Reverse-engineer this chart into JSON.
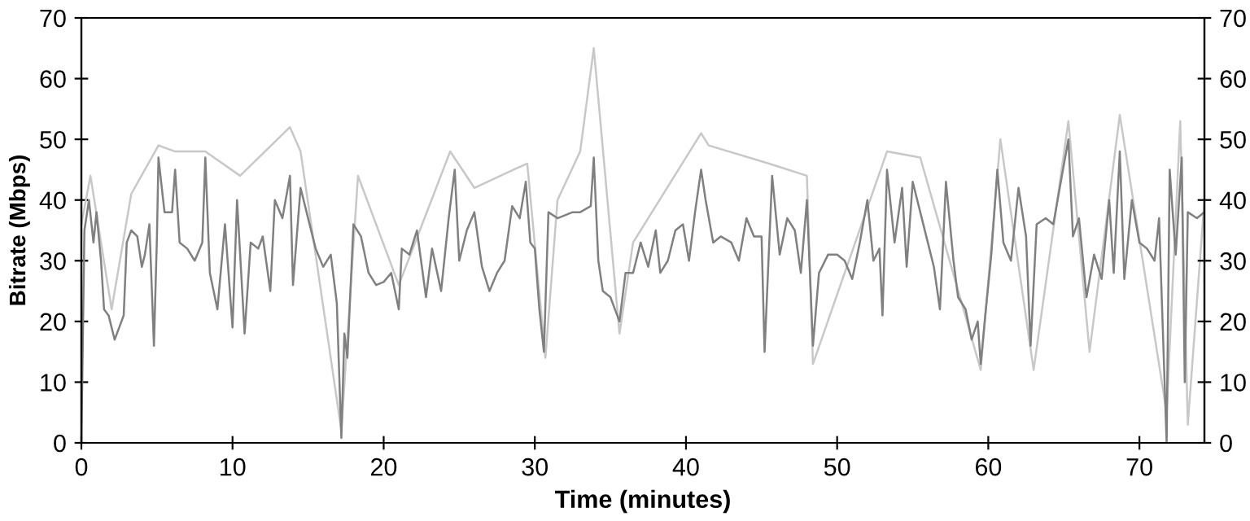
{
  "chart_data": {
    "type": "line",
    "xlabel": "Time (minutes)",
    "ylabel": "Bitrate (Mbps)",
    "xlim": [
      0,
      74.3
    ],
    "xticks": [
      0,
      10,
      20,
      30,
      40,
      50,
      60,
      70
    ],
    "ylim": [
      0,
      70
    ],
    "yticks": [
      0,
      10,
      20,
      30,
      40,
      50,
      60,
      70
    ],
    "y2lim": [
      0,
      70
    ],
    "y2ticks": [
      0,
      10,
      20,
      30,
      40,
      50,
      60,
      70
    ],
    "grid": false,
    "legend": false,
    "marker": "none",
    "line_style": "solid",
    "series": [
      {
        "color": "#c8c8c8",
        "x": [
          0,
          0.6,
          2,
          3.3,
          5.1,
          6.2,
          8.2,
          10.5,
          13.8,
          14.5,
          17.2,
          18.3,
          21,
          24.4,
          26,
          28.6,
          29.5,
          30.7,
          31.5,
          33,
          33.9,
          35.6,
          36.5,
          41,
          41.5,
          45.5,
          48,
          48.4,
          53.3,
          55.5,
          59.5,
          60.8,
          63,
          65.3,
          66.7,
          68.7,
          71.8,
          72.7,
          73.2,
          74.3
        ],
        "values": [
          36,
          44,
          22,
          41,
          49,
          48,
          48,
          44,
          52,
          48,
          2,
          44,
          26,
          48,
          42,
          45,
          46,
          14,
          40,
          48,
          65,
          18,
          33,
          51,
          49,
          46,
          44,
          13,
          48,
          47,
          12,
          50,
          12,
          53,
          15,
          54,
          5,
          53,
          3,
          40
        ]
      },
      {
        "color": "#808080",
        "x": [
          0,
          0.2,
          0.5,
          0.8,
          1.0,
          1.3,
          1.5,
          1.8,
          2.2,
          2.5,
          2.8,
          3.0,
          3.3,
          3.7,
          4.0,
          4.2,
          4.5,
          4.8,
          5.0,
          5.1,
          5.5,
          6.0,
          6.2,
          6.5,
          7.0,
          7.5,
          8.0,
          8.2,
          8.5,
          9.0,
          9.5,
          10.0,
          10.3,
          10.8,
          11.2,
          11.7,
          12.0,
          12.5,
          12.8,
          13.3,
          13.8,
          14.0,
          14.5,
          15.0,
          15.5,
          16.0,
          16.5,
          16.9,
          17.2,
          17.4,
          17.6,
          18.0,
          18.5,
          19.0,
          19.5,
          20.0,
          20.5,
          21.0,
          21.2,
          21.7,
          22.2,
          22.8,
          23.2,
          23.8,
          24.3,
          24.7,
          25.0,
          25.5,
          26.0,
          26.5,
          27.0,
          27.5,
          28.0,
          28.5,
          29.0,
          29.4,
          29.7,
          30.0,
          30.3,
          30.6,
          30.9,
          31.5,
          32.5,
          33.0,
          33.7,
          33.9,
          34.2,
          34.5,
          35.0,
          35.6,
          36.0,
          36.5,
          37.0,
          37.5,
          38.0,
          38.3,
          38.8,
          39.3,
          39.8,
          40.2,
          40.6,
          41.0,
          41.3,
          41.8,
          42.3,
          43.0,
          43.5,
          44.0,
          44.5,
          45.0,
          45.2,
          45.7,
          46.2,
          46.7,
          47.2,
          47.6,
          48.0,
          48.4,
          48.8,
          49.4,
          50.0,
          50.5,
          51.0,
          51.5,
          52.0,
          52.4,
          52.8,
          53.0,
          53.3,
          53.8,
          54.3,
          54.6,
          55.0,
          55.5,
          56.0,
          56.4,
          56.8,
          57.2,
          57.7,
          58.0,
          58.5,
          58.9,
          59.3,
          59.5,
          59.8,
          60.2,
          60.6,
          61.0,
          61.5,
          62.0,
          62.5,
          62.8,
          63.2,
          63.8,
          64.3,
          64.8,
          65.3,
          65.6,
          66.0,
          66.5,
          67.0,
          67.5,
          68.0,
          68.3,
          68.7,
          69.0,
          69.5,
          70.0,
          70.5,
          71.0,
          71.3,
          71.8,
          72.0,
          72.4,
          72.8,
          73.0,
          73.2,
          73.8,
          74.3
        ],
        "values": [
          0,
          35,
          40,
          33,
          38,
          30,
          22,
          21,
          17,
          19,
          21,
          33,
          35,
          34,
          29,
          31,
          36,
          16,
          34,
          47,
          38,
          38,
          45,
          33,
          32,
          30,
          33,
          47,
          28,
          22,
          36,
          19,
          40,
          18,
          33,
          32,
          34,
          25,
          40,
          37,
          44,
          26,
          42,
          37,
          32,
          29,
          31,
          23,
          0.8,
          18,
          14,
          36,
          34,
          28,
          26,
          26.5,
          28,
          22,
          32,
          31,
          35,
          24,
          32,
          25,
          37,
          45,
          30,
          35,
          38,
          29,
          25,
          28,
          30,
          39,
          37,
          43,
          33,
          32,
          22,
          15,
          38,
          37,
          38,
          38,
          39,
          47,
          30,
          25,
          24,
          20,
          28,
          28,
          33,
          29,
          35,
          28,
          30,
          35,
          36,
          30,
          38,
          45,
          40,
          33,
          34,
          33,
          30,
          37,
          34,
          34,
          15,
          44,
          31,
          37,
          35,
          28,
          40,
          16,
          28,
          31,
          31,
          30,
          27,
          33,
          40,
          30,
          32,
          21,
          45,
          33,
          42,
          29,
          43,
          38,
          33,
          29,
          22,
          43,
          30,
          24,
          22,
          17,
          20,
          13,
          21,
          31,
          45,
          33,
          30,
          42,
          34,
          16,
          36,
          37,
          36,
          43,
          50,
          34,
          37,
          24,
          31,
          27,
          40,
          28,
          48,
          27,
          40,
          33,
          32,
          30,
          37,
          0,
          45,
          31,
          47,
          10,
          38,
          37,
          38
        ]
      }
    ]
  }
}
